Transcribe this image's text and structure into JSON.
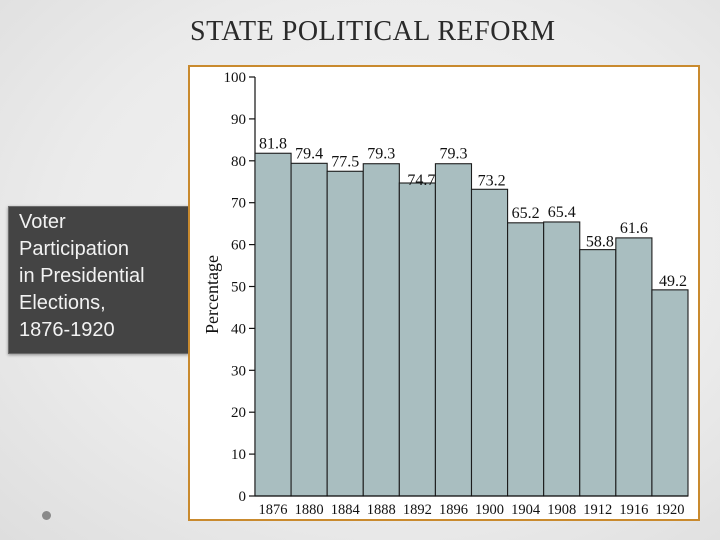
{
  "slide": {
    "title": "STATE POLITICAL REFORM",
    "caption_lines": [
      "Voter",
      "Participation",
      "in Presidential",
      "Elections,",
      "1876-1920"
    ]
  },
  "colors": {
    "bar_fill": "#a9bec0",
    "bar_stroke": "#1c1c1c",
    "frame_border": "#c98a2e",
    "caption_bg": "#444444"
  },
  "chart_data": {
    "type": "bar",
    "title": "",
    "xlabel": "",
    "ylabel": "Percentage",
    "categories": [
      "1876",
      "1880",
      "1884",
      "1888",
      "1892",
      "1896",
      "1900",
      "1904",
      "1908",
      "1912",
      "1916",
      "1920"
    ],
    "values": [
      81.8,
      79.4,
      77.5,
      79.3,
      74.7,
      79.3,
      73.2,
      65.2,
      65.4,
      58.8,
      61.6,
      49.2
    ],
    "data_labels": [
      "81.8",
      "79.4",
      "77.5",
      "79.3",
      "74.7",
      "79.3",
      "73.2",
      "65.2",
      "65.4",
      "58.8",
      "61.6",
      "49.2"
    ],
    "ylim": [
      0,
      100
    ],
    "yticks": [
      0,
      10,
      20,
      30,
      40,
      50,
      60,
      70,
      80,
      90,
      100
    ],
    "grid": false,
    "legend": "none"
  }
}
